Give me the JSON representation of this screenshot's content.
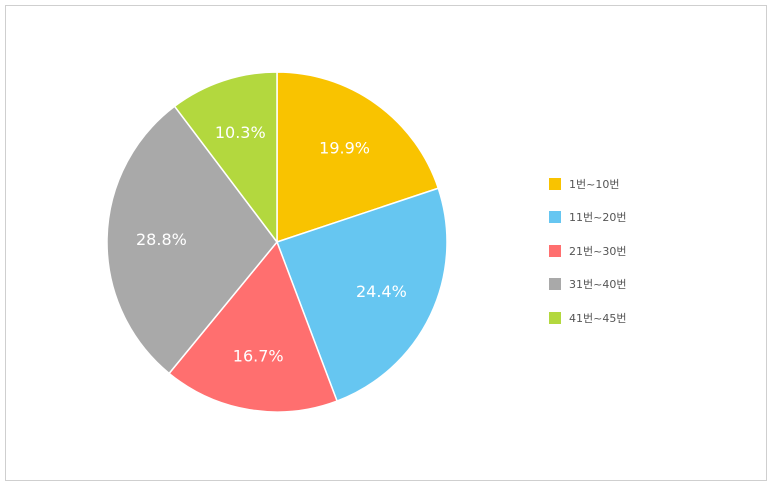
{
  "chart_data": {
    "type": "pie",
    "categories": [
      "1번~10번",
      "11번~20번",
      "21번~30번",
      "31번~40번",
      "41번~45번"
    ],
    "values": [
      19.9,
      24.4,
      16.7,
      28.8,
      10.3
    ],
    "labels": [
      "19.9%",
      "24.4%",
      "16.7%",
      "28.8%",
      "10.3%"
    ],
    "colors": [
      "#f9c300",
      "#66c6f1",
      "#ff6f6f",
      "#a9a9a9",
      "#b3d83e"
    ],
    "legend_position": "right",
    "start": "top, clockwise"
  }
}
